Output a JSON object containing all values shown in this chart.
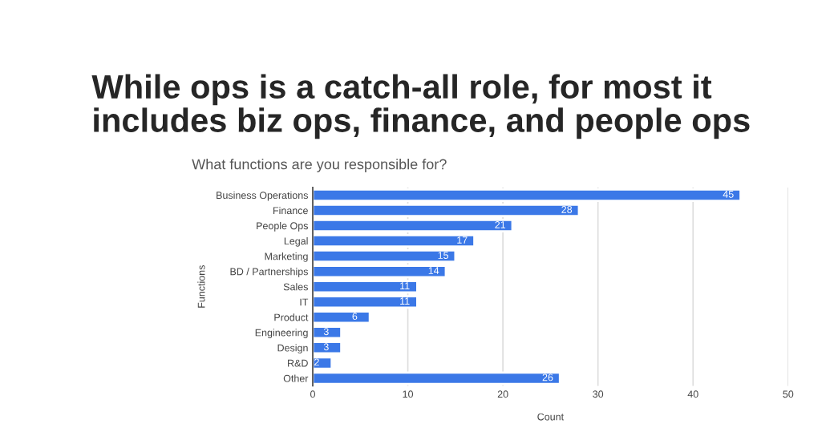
{
  "chart_data": {
    "type": "bar",
    "orientation": "horizontal",
    "title": "While ops is a catch-all role, for most it includes biz ops, finance, and people ops",
    "subtitle": "What functions are you responsible for?",
    "xlabel": "Count",
    "ylabel": "Functions",
    "categories": [
      "Business Operations",
      "Finance",
      "People Ops",
      "Legal",
      "Marketing",
      "BD / Partnerships",
      "Sales",
      "IT",
      "Product",
      "Engineering",
      "Design",
      "R&D",
      "Other"
    ],
    "values": [
      45,
      28,
      21,
      17,
      15,
      14,
      11,
      11,
      6,
      3,
      3,
      2,
      26
    ],
    "color": "#3b78e7",
    "xlim": [
      0,
      50
    ],
    "xticks": [
      0,
      10,
      20,
      30,
      40,
      50
    ],
    "grid": "x",
    "data_labels": true
  }
}
